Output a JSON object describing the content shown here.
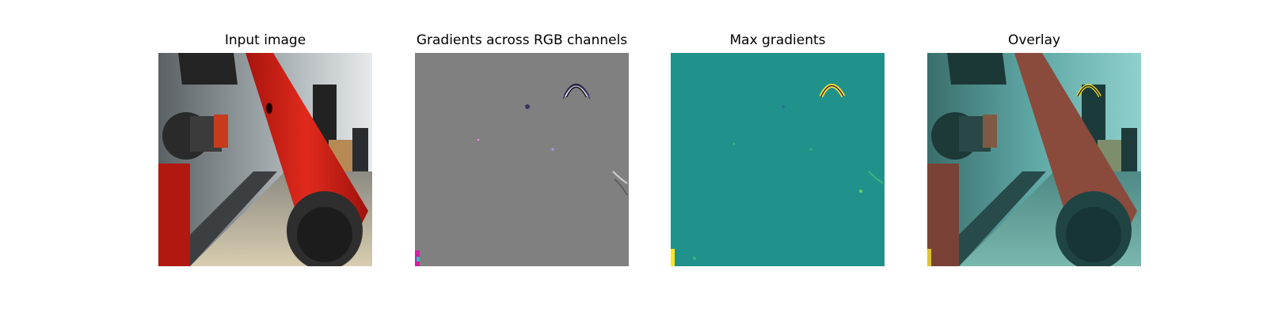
{
  "panels": [
    {
      "title": "Input image"
    },
    {
      "title": "Gradients across RGB channels"
    },
    {
      "title": "Max gradients"
    },
    {
      "title": "Overlay"
    }
  ],
  "colors": {
    "robot_red": "#c81e14",
    "gradient_gray": "#808080",
    "viridis_teal": "#21918c",
    "viridis_yellow": "#fde725",
    "overlay_tint": "#3aa8a3"
  }
}
